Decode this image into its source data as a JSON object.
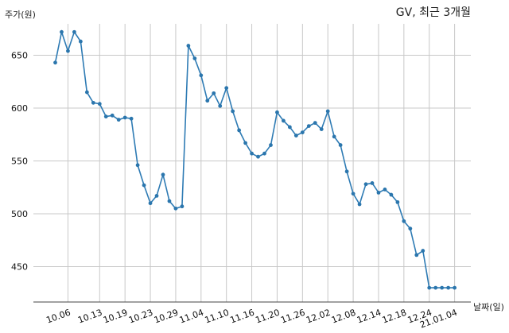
{
  "chart_data": {
    "type": "line",
    "title": "GV, 최근 3개월",
    "ylabel": "주가(원)",
    "xlabel": "날짜(일)",
    "ylim": [
      415,
      690
    ],
    "yticks": [
      450,
      500,
      550,
      600,
      650
    ],
    "x_tick_labels": [
      "10.06",
      "10.13",
      "10.19",
      "10.23",
      "10.29",
      "11.04",
      "11.10",
      "11.16",
      "11.20",
      "11.26",
      "12.02",
      "12.08",
      "12.14",
      "12.18",
      "12.24",
      "21.01.04"
    ],
    "x_tick_positions": [
      2,
      7,
      11,
      15,
      19,
      23,
      27,
      31,
      35,
      39,
      43,
      47,
      51,
      55,
      59,
      63
    ],
    "grid": true,
    "x": [
      0,
      1,
      2,
      3,
      4,
      5,
      6,
      7,
      8,
      9,
      10,
      11,
      12,
      13,
      14,
      15,
      16,
      17,
      18,
      19,
      20,
      21,
      22,
      23,
      24,
      25,
      26,
      27,
      28,
      29,
      30,
      31,
      32,
      33,
      34,
      35,
      36,
      37,
      38,
      39,
      40,
      41,
      42,
      43,
      44,
      45,
      46,
      47,
      48,
      49,
      50,
      51,
      52,
      53,
      54,
      55,
      56,
      57,
      58,
      59,
      60,
      61,
      62,
      63
    ],
    "values": [
      643,
      672,
      654,
      672,
      663,
      615,
      605,
      604,
      592,
      593,
      589,
      591,
      590,
      546,
      527,
      510,
      517,
      537,
      512,
      505,
      507,
      659,
      647,
      631,
      607,
      614,
      602,
      619,
      597,
      579,
      567,
      557,
      554,
      557,
      565,
      596,
      588,
      582,
      574,
      577,
      583,
      586,
      580,
      597,
      573,
      565,
      540,
      519,
      509,
      528,
      529,
      520,
      523,
      518,
      511,
      493,
      486,
      461,
      465,
      430,
      430,
      430,
      430,
      430
    ]
  }
}
